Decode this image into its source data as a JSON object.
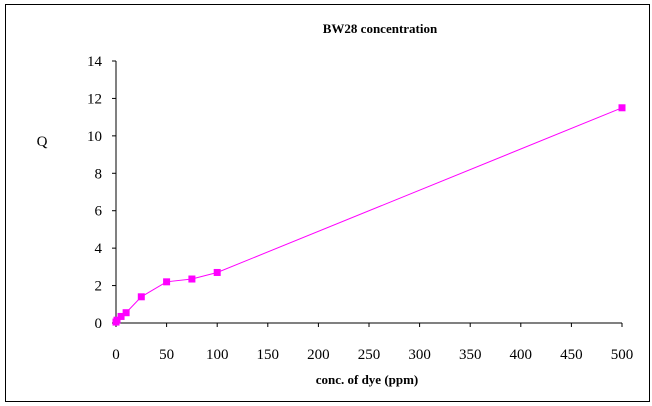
{
  "chart_data": {
    "type": "line",
    "title": "BW28 concentration",
    "xlabel": "conc. of dye (ppm)",
    "ylabel": "Q",
    "xlim": [
      0,
      500
    ],
    "ylim": [
      0,
      14
    ],
    "xticks": [
      0,
      50,
      100,
      150,
      200,
      250,
      300,
      350,
      400,
      450,
      500
    ],
    "yticks": [
      0,
      2,
      4,
      6,
      8,
      10,
      12,
      14
    ],
    "grid": false,
    "legend": "none",
    "series": [
      {
        "color": "#ff00ff",
        "marker": "square",
        "x": [
          0,
          1,
          5,
          10,
          25,
          50,
          75,
          100,
          500
        ],
        "y": [
          0.05,
          0.15,
          0.35,
          0.55,
          1.4,
          2.2,
          2.35,
          2.7,
          11.5
        ]
      }
    ]
  }
}
